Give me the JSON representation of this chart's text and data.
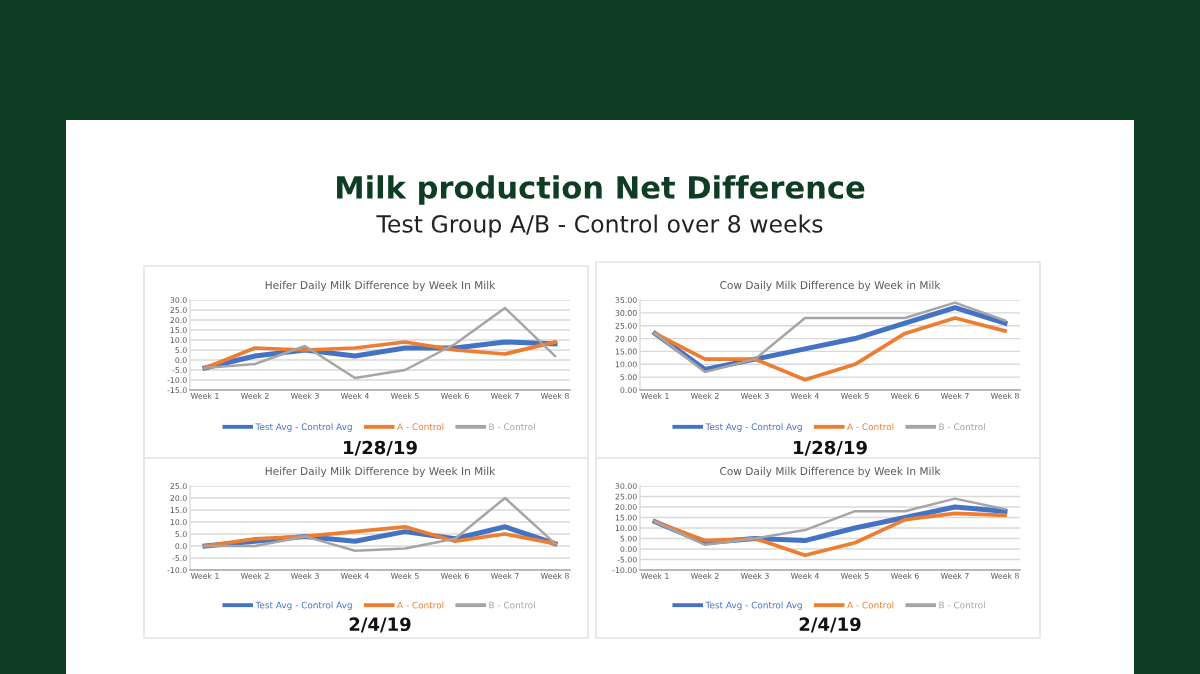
{
  "chart_data": [
    {
      "type": "line",
      "title": "Heifer Daily Milk Difference by Week In Milk",
      "categories": [
        "Week 1",
        "Week 2",
        "Week 3",
        "Week 4",
        "Week 5",
        "Week 6",
        "Week 7",
        "Week 8"
      ],
      "series": [
        {
          "name": "Test Avg - Control Avg",
          "color": "#4472c4",
          "values": [
            -4,
            2,
            5,
            2,
            6,
            6,
            9,
            8
          ]
        },
        {
          "name": "A - Control",
          "color": "#ed7d31",
          "values": [
            -4,
            6,
            5,
            6,
            9,
            5,
            3,
            9
          ]
        },
        {
          "name": "B - Control",
          "color": "#a5a5a5",
          "values": [
            -4,
            -2,
            7,
            -9,
            -5,
            8,
            26,
            2
          ]
        }
      ],
      "ylim": [
        -15,
        30
      ],
      "yticks": [
        {
          "value": -15,
          "label": "-15.0"
        },
        {
          "value": -10,
          "label": "-10.0"
        },
        {
          "value": -5,
          "label": "-5.0"
        },
        {
          "value": 0,
          "label": "0.0"
        },
        {
          "value": 5,
          "label": "5.0"
        },
        {
          "value": 10,
          "label": "10.0"
        },
        {
          "value": 15,
          "label": "15.0"
        },
        {
          "value": 20,
          "label": "20.0"
        },
        {
          "value": 25,
          "label": "25.0"
        },
        {
          "value": 30,
          "label": "30.0"
        }
      ],
      "grid": "y",
      "legend": "bottom",
      "marker": "none",
      "line_style": "solid",
      "annotations": [
        "Milk production Net Difference",
        "Test Group A/B - Control over 8 weeks",
        "1/28/19"
      ]
    },
    {
      "type": "line",
      "title": "Cow Daily Milk Difference by Week in Milk",
      "categories": [
        "Week 1",
        "Week 2",
        "Week 3",
        "Week 4",
        "Week 5",
        "Week 6",
        "Week 7",
        "Week 8"
      ],
      "series": [
        {
          "name": "Test Avg - Control Avg",
          "color": "#4472c4",
          "values": [
            22,
            8,
            12,
            16,
            20,
            26,
            32,
            26
          ]
        },
        {
          "name": "A - Control",
          "color": "#ed7d31",
          "values": [
            22,
            12,
            12,
            4,
            10,
            22,
            28,
            23
          ]
        },
        {
          "name": "B - Control",
          "color": "#a5a5a5",
          "values": [
            22,
            7,
            12,
            28,
            28,
            28,
            34,
            27
          ]
        }
      ],
      "ylim": [
        0,
        35
      ],
      "yticks": [
        {
          "value": 0,
          "label": "0.00"
        },
        {
          "value": 5,
          "label": "5.00"
        },
        {
          "value": 10,
          "label": "10.00"
        },
        {
          "value": 15,
          "label": "15.00"
        },
        {
          "value": 20,
          "label": "20.00"
        },
        {
          "value": 25,
          "label": "25.00"
        },
        {
          "value": 30,
          "label": "30.00"
        },
        {
          "value": 35,
          "label": "35.00"
        }
      ],
      "grid": "y",
      "legend": "bottom",
      "marker": "none",
      "line_style": "solid",
      "annotations": [
        "1/28/19"
      ]
    },
    {
      "type": "line",
      "title": "Heifer Daily Milk Difference by Week In Milk",
      "categories": [
        "Week 1",
        "Week 2",
        "Week 3",
        "Week 4",
        "Week 5",
        "Week 6",
        "Week 7",
        "Week 8"
      ],
      "series": [
        {
          "name": "Test Avg - Control Avg",
          "color": "#4472c4",
          "values": [
            0,
            2,
            4,
            2,
            6,
            3,
            8,
            1
          ]
        },
        {
          "name": "A - Control",
          "color": "#ed7d31",
          "values": [
            0,
            3,
            4,
            6,
            8,
            2,
            5,
            1
          ]
        },
        {
          "name": "B - Control",
          "color": "#a5a5a5",
          "values": [
            0,
            0,
            4,
            -2,
            -1,
            3,
            20,
            1
          ]
        }
      ],
      "ylim": [
        -10,
        25
      ],
      "yticks": [
        {
          "value": -10,
          "label": "-10.0"
        },
        {
          "value": -5,
          "label": "-5.0"
        },
        {
          "value": 0,
          "label": "0.0"
        },
        {
          "value": 5,
          "label": "5.0"
        },
        {
          "value": 10,
          "label": "10.0"
        },
        {
          "value": 15,
          "label": "15.0"
        },
        {
          "value": 20,
          "label": "20.0"
        },
        {
          "value": 25,
          "label": "25.0"
        }
      ],
      "grid": "y",
      "legend": "bottom",
      "marker": "none",
      "line_style": "solid",
      "annotations": [
        "2/4/19"
      ]
    },
    {
      "type": "line",
      "title": "Cow Daily Milk Difference by Week In Milk",
      "categories": [
        "Week 1",
        "Week 2",
        "Week 3",
        "Week 4",
        "Week 5",
        "Week 6",
        "Week 7",
        "Week 8"
      ],
      "series": [
        {
          "name": "Test Avg - Control Avg",
          "color": "#4472c4",
          "values": [
            13,
            3,
            5,
            4,
            10,
            15,
            20,
            18
          ]
        },
        {
          "name": "A - Control",
          "color": "#ed7d31",
          "values": [
            13,
            4,
            5,
            -3,
            3,
            14,
            17,
            16
          ]
        },
        {
          "name": "B - Control",
          "color": "#a5a5a5",
          "values": [
            13,
            2,
            5,
            9,
            18,
            18,
            24,
            19
          ]
        }
      ],
      "ylim": [
        -10,
        30
      ],
      "yticks": [
        {
          "value": -10,
          "label": "-10.00"
        },
        {
          "value": -5,
          "label": "-5.00"
        },
        {
          "value": 0,
          "label": "0.00"
        },
        {
          "value": 5,
          "label": "5.00"
        },
        {
          "value": 10,
          "label": "10.00"
        },
        {
          "value": 15,
          "label": "15.00"
        },
        {
          "value": 20,
          "label": "20.00"
        },
        {
          "value": 25,
          "label": "25.00"
        },
        {
          "value": 30,
          "label": "30.00"
        }
      ],
      "grid": "y",
      "legend": "bottom",
      "marker": "none",
      "line_style": "solid",
      "annotations": [
        "2/4/19"
      ]
    }
  ]
}
